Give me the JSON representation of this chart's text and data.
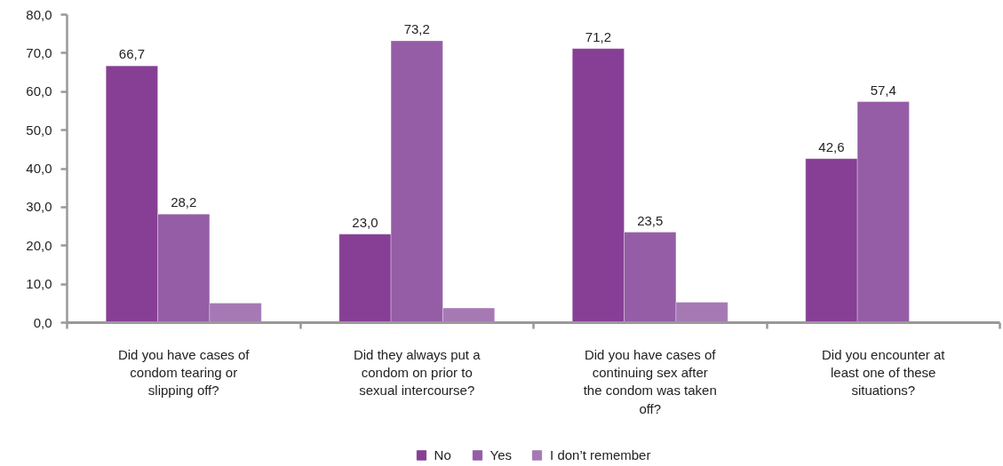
{
  "chart_data": {
    "type": "bar",
    "categories": [
      "Did you have cases of condom tearing or slipping off?",
      "Did they always put a condom on prior to sexual intercourse?",
      "Did you have cases of continuing sex after the condom was taken off?",
      "Did you encounter at least one of these situations?"
    ],
    "series": [
      {
        "name": "No",
        "color": "#873f95",
        "values": [
          66.7,
          23.0,
          71.2,
          42.6
        ],
        "value_labels": [
          "66,7",
          "23,0",
          "71,2",
          "42,6"
        ]
      },
      {
        "name": "Yes",
        "color": "#955da6",
        "values": [
          28.2,
          73.2,
          23.5,
          57.4
        ],
        "value_labels": [
          "28,2",
          "73,2",
          "23,5",
          "57,4"
        ]
      },
      {
        "name": "I don’t remember",
        "color": "#a679b5",
        "values": [
          5.1,
          3.8,
          5.3,
          null
        ]
      }
    ],
    "ylim": [
      0,
      80
    ],
    "yticks": [
      {
        "value": 0,
        "label": "0,0"
      },
      {
        "value": 10,
        "label": "10,0"
      },
      {
        "value": 20,
        "label": "20,0"
      },
      {
        "value": 30,
        "label": "30,0"
      },
      {
        "value": 40,
        "label": "40,0"
      },
      {
        "value": 50,
        "label": "50,0"
      },
      {
        "value": 60,
        "label": "60,0"
      },
      {
        "value": 70,
        "label": "70,0"
      },
      {
        "value": 80,
        "label": "80,0"
      }
    ],
    "grid": false,
    "legend": "bottom"
  }
}
